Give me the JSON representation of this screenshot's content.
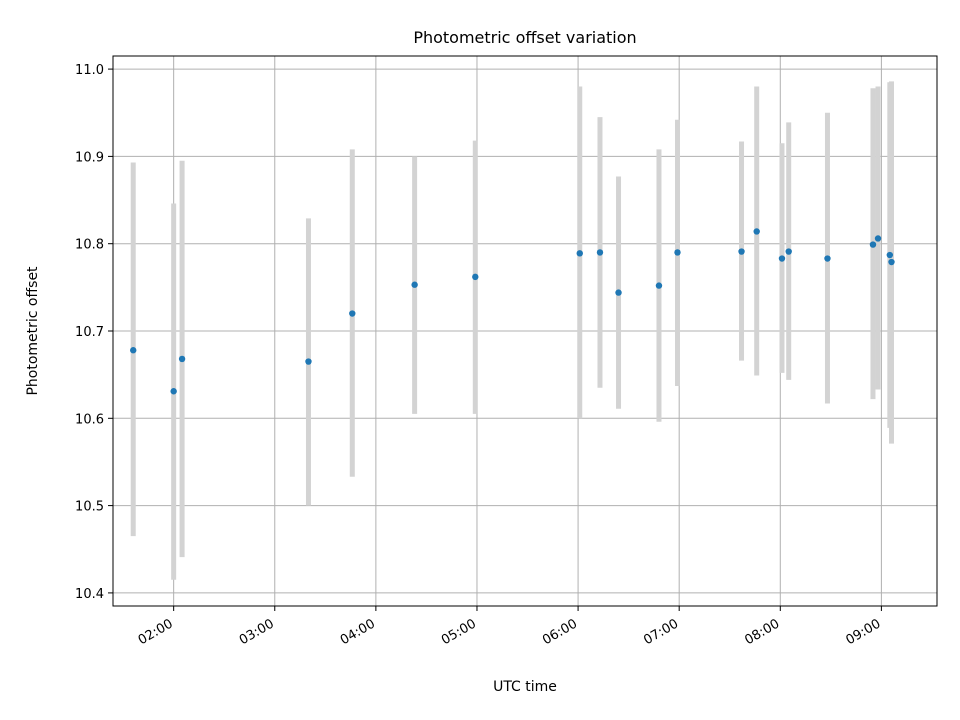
{
  "chart_data": {
    "type": "scatter",
    "title": "Photometric offset variation",
    "xlabel": "UTC time",
    "ylabel": "Photometric offset",
    "x_unit": "UTC time (HH:MM)",
    "xlim": [
      "01:24",
      "09:33"
    ],
    "ylim": [
      10.385,
      11.015
    ],
    "grid": true,
    "legend": null,
    "x_ticks": [
      "02:00",
      "03:00",
      "04:00",
      "05:00",
      "06:00",
      "07:00",
      "08:00",
      "09:00"
    ],
    "y_ticks": [
      "10.4",
      "10.5",
      "10.6",
      "10.7",
      "10.8",
      "10.9",
      "11.0"
    ],
    "x_tick_values": [
      "02:00",
      "03:00",
      "04:00",
      "05:00",
      "06:00",
      "07:00",
      "08:00",
      "09:00"
    ],
    "y_tick_values": [
      10.4,
      10.5,
      10.6,
      10.7,
      10.8,
      10.9,
      11.0
    ],
    "points": [
      {
        "x": "01:36",
        "y": 10.678,
        "ylow": 10.465,
        "yhigh": 10.893
      },
      {
        "x": "02:00",
        "y": 10.631,
        "ylow": 10.415,
        "yhigh": 10.846
      },
      {
        "x": "02:05",
        "y": 10.668,
        "ylow": 10.441,
        "yhigh": 10.895
      },
      {
        "x": "03:20",
        "y": 10.665,
        "ylow": 10.5,
        "yhigh": 10.829
      },
      {
        "x": "03:46",
        "y": 10.72,
        "ylow": 10.533,
        "yhigh": 10.908
      },
      {
        "x": "04:23",
        "y": 10.753,
        "ylow": 10.605,
        "yhigh": 10.9
      },
      {
        "x": "04:59",
        "y": 10.762,
        "ylow": 10.605,
        "yhigh": 10.918
      },
      {
        "x": "06:01",
        "y": 10.789,
        "ylow": 10.6,
        "yhigh": 10.98
      },
      {
        "x": "06:13",
        "y": 10.79,
        "ylow": 10.635,
        "yhigh": 10.945
      },
      {
        "x": "06:24",
        "y": 10.744,
        "ylow": 10.611,
        "yhigh": 10.877
      },
      {
        "x": "06:48",
        "y": 10.752,
        "ylow": 10.596,
        "yhigh": 10.908
      },
      {
        "x": "06:59",
        "y": 10.79,
        "ylow": 10.637,
        "yhigh": 10.942
      },
      {
        "x": "07:37",
        "y": 10.791,
        "ylow": 10.666,
        "yhigh": 10.917
      },
      {
        "x": "07:46",
        "y": 10.814,
        "ylow": 10.649,
        "yhigh": 10.98
      },
      {
        "x": "08:01",
        "y": 10.783,
        "ylow": 10.652,
        "yhigh": 10.915
      },
      {
        "x": "08:05",
        "y": 10.791,
        "ylow": 10.644,
        "yhigh": 10.939
      },
      {
        "x": "08:28",
        "y": 10.783,
        "ylow": 10.617,
        "yhigh": 10.95
      },
      {
        "x": "08:55",
        "y": 10.799,
        "ylow": 10.622,
        "yhigh": 10.978
      },
      {
        "x": "08:58",
        "y": 10.806,
        "ylow": 10.633,
        "yhigh": 10.98
      },
      {
        "x": "09:05",
        "y": 10.787,
        "ylow": 10.589,
        "yhigh": 10.985
      },
      {
        "x": "09:06",
        "y": 10.779,
        "ylow": 10.571,
        "yhigh": 10.986
      }
    ],
    "colors": {
      "point": "#1f77b4",
      "errorbar": "#d3d3d3",
      "grid": "#b0b0b0",
      "axes": "#000000"
    }
  }
}
